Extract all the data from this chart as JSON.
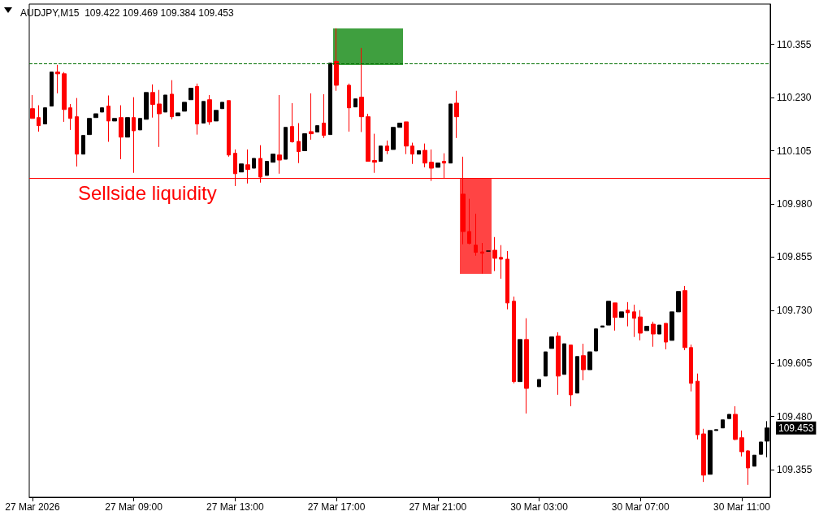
{
  "chart_data": {
    "type": "candlestick",
    "title": "AUDJPY,M15  109.422 109.469 109.384 109.453",
    "categories": [
      "27 Mar 2026",
      null,
      null,
      null,
      null,
      null,
      null,
      null,
      null,
      null,
      null,
      null,
      null,
      null,
      null,
      null,
      "27 Mar 09:00",
      null,
      null,
      null,
      null,
      null,
      null,
      null,
      null,
      null,
      null,
      null,
      null,
      null,
      null,
      null,
      "27 Mar 13:00",
      null,
      null,
      null,
      null,
      null,
      null,
      null,
      null,
      null,
      null,
      null,
      null,
      null,
      null,
      null,
      "27 Mar 17:00",
      null,
      null,
      null,
      null,
      null,
      null,
      null,
      null,
      null,
      null,
      null,
      null,
      null,
      null,
      null,
      "27 Mar 21:00",
      null,
      null,
      null,
      null,
      null,
      null,
      null,
      null,
      null,
      null,
      null,
      null,
      null,
      null,
      null,
      "30 Mar 03:00",
      null,
      null,
      null,
      null,
      null,
      null,
      null,
      null,
      null,
      null,
      null,
      null,
      null,
      null,
      null,
      "30 Mar 07:00",
      null,
      null,
      null,
      null,
      null,
      null,
      null,
      null,
      null,
      null,
      null,
      null,
      null,
      null,
      null,
      "30 Mar 11:00",
      null,
      null,
      null,
      null
    ],
    "ohlc": [
      [
        110.204,
        110.236,
        110.181,
        110.181
      ],
      [
        110.183,
        110.212,
        110.15,
        110.164
      ],
      [
        110.168,
        110.206,
        110.168,
        110.206
      ],
      [
        110.21,
        110.29,
        110.21,
        110.29
      ],
      [
        110.29,
        110.307,
        110.24,
        110.286
      ],
      [
        110.286,
        110.29,
        110.173,
        110.202
      ],
      [
        110.206,
        110.215,
        110.154,
        110.181
      ],
      [
        110.185,
        110.229,
        110.068,
        110.097
      ],
      [
        110.097,
        110.141,
        110.097,
        110.141
      ],
      [
        110.143,
        110.181,
        110.143,
        110.181
      ],
      [
        110.183,
        110.192,
        110.183,
        110.192
      ],
      [
        110.196,
        110.206,
        110.196,
        110.206
      ],
      [
        110.21,
        110.235,
        110.126,
        110.175
      ],
      [
        110.175,
        110.181,
        110.175,
        110.181
      ],
      [
        110.183,
        110.212,
        110.085,
        110.137
      ],
      [
        110.137,
        110.183,
        110.137,
        110.183
      ],
      [
        110.183,
        110.231,
        110.053,
        110.152
      ],
      [
        110.154,
        110.181,
        110.154,
        110.181
      ],
      [
        110.179,
        110.242,
        110.179,
        110.242
      ],
      [
        110.242,
        110.261,
        110.183,
        110.214
      ],
      [
        110.215,
        110.248,
        110.114,
        110.192
      ],
      [
        110.196,
        110.236,
        110.196,
        110.236
      ],
      [
        110.238,
        110.271,
        110.179,
        110.185
      ],
      [
        110.187,
        110.194,
        110.187,
        110.194
      ],
      [
        110.198,
        110.219,
        110.198,
        110.219
      ],
      [
        110.225,
        110.252,
        110.225,
        110.252
      ],
      [
        110.256,
        110.263,
        110.143,
        110.168
      ],
      [
        110.17,
        110.221,
        110.17,
        110.221
      ],
      [
        110.225,
        110.236,
        110.166,
        110.173
      ],
      [
        110.175,
        110.2,
        110.175,
        110.2
      ],
      [
        110.204,
        110.219,
        110.204,
        110.219
      ],
      [
        110.223,
        110.223,
        110.091,
        110.095
      ],
      [
        110.099,
        110.108,
        110.022,
        110.051
      ],
      [
        110.055,
        110.074,
        110.055,
        110.074
      ],
      [
        110.072,
        110.108,
        110.028,
        110.061
      ],
      [
        110.064,
        110.087,
        110.064,
        110.087
      ],
      [
        110.087,
        110.118,
        110.03,
        110.043
      ],
      [
        110.047,
        110.08,
        110.047,
        110.08
      ],
      [
        110.078,
        110.097,
        110.078,
        110.097
      ],
      [
        110.095,
        110.236,
        110.051,
        110.083
      ],
      [
        110.085,
        110.16,
        110.085,
        110.16
      ],
      [
        110.162,
        110.217,
        110.124,
        110.126
      ],
      [
        110.127,
        110.17,
        110.076,
        110.103
      ],
      [
        110.105,
        110.145,
        110.105,
        110.145
      ],
      [
        110.15,
        110.24,
        110.131,
        110.145
      ],
      [
        110.149,
        110.164,
        110.149,
        110.164
      ],
      [
        110.17,
        110.238,
        110.135,
        110.141
      ],
      [
        110.143,
        110.311,
        110.143,
        110.311
      ],
      [
        110.315,
        110.393,
        110.246,
        110.259
      ],
      null,
      [
        110.259,
        110.263,
        110.15,
        110.206
      ],
      [
        110.208,
        110.227,
        110.208,
        110.227
      ],
      [
        110.231,
        110.347,
        110.149,
        110.185
      ],
      [
        110.185,
        110.192,
        110.08,
        110.08
      ],
      [
        110.082,
        110.145,
        110.053,
        110.078
      ],
      [
        110.08,
        110.116,
        110.08,
        110.116
      ],
      [
        110.116,
        110.129,
        110.097,
        110.105
      ],
      [
        110.108,
        110.16,
        110.108,
        110.16
      ],
      [
        110.16,
        110.17,
        110.16,
        110.17
      ],
      [
        110.173,
        110.173,
        110.097,
        110.116
      ],
      [
        110.116,
        110.124,
        110.074,
        110.097
      ],
      [
        110.097,
        110.105,
        110.097,
        110.105
      ],
      [
        110.106,
        110.122,
        110.066,
        110.076
      ],
      [
        110.078,
        110.108,
        110.034,
        110.064
      ],
      [
        110.066,
        110.076,
        110.066,
        110.076
      ],
      [
        110.08,
        110.099,
        110.041,
        110.076
      ],
      [
        110.076,
        110.215,
        110.076,
        110.215
      ],
      [
        110.217,
        110.246,
        110.135,
        110.185
      ],
      [
        110.003,
        110.091,
        109.885,
        109.915
      ],
      [
        109.915,
        109.992,
        109.885,
        109.887
      ],
      [
        109.883,
        109.957,
        109.858,
        109.866
      ],
      [
        109.867,
        109.888,
        109.816,
        109.864
      ],
      [
        109.869,
        109.869,
        109.869,
        109.869
      ],
      [
        109.871,
        109.902,
        109.822,
        109.852
      ],
      [
        109.854,
        109.883,
        109.804,
        109.85
      ],
      [
        109.85,
        109.869,
        109.732,
        109.747
      ],
      [
        109.751,
        109.762,
        109.558,
        109.562
      ],
      [
        109.562,
        109.661,
        109.562,
        109.661
      ],
      [
        109.661,
        109.711,
        109.487,
        109.546
      ],
      null,
      [
        109.55,
        109.567,
        109.55,
        109.567
      ],
      [
        109.575,
        109.632,
        109.575,
        109.632
      ],
      [
        109.64,
        109.667,
        109.64,
        109.667
      ],
      [
        109.669,
        109.678,
        109.531,
        109.575
      ],
      [
        109.579,
        109.651,
        109.579,
        109.651
      ],
      [
        109.648,
        109.648,
        109.504,
        109.531
      ],
      [
        109.535,
        109.621,
        109.535,
        109.621
      ],
      [
        109.623,
        109.651,
        109.565,
        109.59
      ],
      [
        109.59,
        109.632,
        109.59,
        109.632
      ],
      [
        109.634,
        109.686,
        109.634,
        109.686
      ],
      [
        109.69,
        109.693,
        109.69,
        109.693
      ],
      [
        109.695,
        109.751,
        109.695,
        109.751
      ],
      [
        109.747,
        109.747,
        109.682,
        109.713
      ],
      [
        109.713,
        109.726,
        109.713,
        109.726
      ],
      [
        109.73,
        109.749,
        109.692,
        109.724
      ],
      [
        109.726,
        109.743,
        109.667,
        109.711
      ],
      [
        109.714,
        109.73,
        109.659,
        109.676
      ],
      [
        109.682,
        109.692,
        109.682,
        109.692
      ],
      [
        109.697,
        109.703,
        109.644,
        109.674
      ],
      [
        109.674,
        109.695,
        109.674,
        109.695
      ],
      [
        109.699,
        109.699,
        109.638,
        109.655
      ],
      [
        109.659,
        109.726,
        109.659,
        109.726
      ],
      [
        109.726,
        109.774,
        109.726,
        109.774
      ],
      [
        109.776,
        109.787,
        109.636,
        109.642
      ],
      [
        109.642,
        109.649,
        109.539,
        109.558
      ],
      [
        109.563,
        109.581,
        109.426,
        109.437
      ],
      [
        109.439,
        109.451,
        109.326,
        109.342
      ],
      [
        109.344,
        109.447,
        109.344,
        109.447
      ],
      [
        109.447,
        109.449,
        109.447,
        109.449
      ],
      [
        109.453,
        109.472,
        109.453,
        109.472
      ],
      [
        109.475,
        109.485,
        109.475,
        109.485
      ],
      [
        109.485,
        109.504,
        109.424,
        109.426
      ],
      [
        109.43,
        109.447,
        109.386,
        109.397
      ],
      [
        109.399,
        109.401,
        109.319,
        109.359
      ],
      [
        109.363,
        109.389,
        109.363,
        109.389
      ],
      [
        109.391,
        109.42,
        109.391,
        109.42
      ],
      [
        109.422,
        109.469,
        109.384,
        109.453
      ]
    ],
    "colors": [
      "#ff0000",
      "#ff0000",
      "#000000",
      "#000000",
      "#ff0000",
      "#ff0000",
      "#ff0000",
      "#ff0000",
      "#000000",
      "#000000",
      "#000000",
      "#000000",
      "#ff0000",
      "#000000",
      "#ff0000",
      "#000000",
      "#ff0000",
      "#000000",
      "#000000",
      "#ff0000",
      "#ff0000",
      "#000000",
      "#ff0000",
      "#000000",
      "#000000",
      "#000000",
      "#ff0000",
      "#000000",
      "#ff0000",
      "#000000",
      "#000000",
      "#ff0000",
      "#ff0000",
      "#000000",
      "#ff0000",
      "#000000",
      "#ff0000",
      "#000000",
      "#000000",
      "#ff0000",
      "#000000",
      "#ff0000",
      "#ff0000",
      "#000000",
      "#ff0000",
      "#000000",
      "#ff0000",
      "#000000",
      "#ff0000",
      null,
      "#ff0000",
      "#000000",
      "#ff0000",
      "#ff0000",
      "#ff0000",
      "#000000",
      "#ff0000",
      "#000000",
      "#000000",
      "#ff0000",
      "#ff0000",
      "#000000",
      "#ff0000",
      "#ff0000",
      "#000000",
      "#ff0000",
      "#000000",
      "#ff0000",
      "#ff0000",
      "#ff0000",
      "#ff0000",
      "#ff0000",
      "#000000",
      "#ff0000",
      "#ff0000",
      "#ff0000",
      "#ff0000",
      "#000000",
      "#ff0000",
      null,
      "#000000",
      "#000000",
      "#000000",
      "#ff0000",
      "#000000",
      "#ff0000",
      "#000000",
      "#ff0000",
      "#000000",
      "#000000",
      "#000000",
      "#000000",
      "#ff0000",
      "#000000",
      "#ff0000",
      "#ff0000",
      "#ff0000",
      "#000000",
      "#ff0000",
      "#000000",
      "#ff0000",
      "#000000",
      "#000000",
      "#ff0000",
      "#ff0000",
      "#ff0000",
      "#ff0000",
      "#000000",
      "#000000",
      "#000000",
      "#000000",
      "#ff0000",
      "#ff0000",
      "#ff0000",
      "#000000",
      "#000000",
      "#000000"
    ],
    "ylim": [
      109.29,
      110.45
    ],
    "yticks": [
      109.355,
      {
        "value": 109.48,
        "label": "109.480"
      },
      109.605,
      {
        "value": 109.73,
        "label": "109.730"
      },
      109.855,
      {
        "value": 109.98,
        "label": "109.980"
      },
      110.105,
      {
        "value": 110.23,
        "label": "110.230"
      },
      110.355
    ],
    "ref_lines": [
      {
        "axis": "y",
        "value": 110.307,
        "color": "#007000",
        "line_style": "dashed"
      },
      {
        "axis": "y",
        "value": 110.041,
        "label": "Sellside liquidity",
        "color": "#ff0000",
        "line_style": "solid"
      }
    ],
    "annotations": [
      "109.453"
    ],
    "grid": false
  }
}
